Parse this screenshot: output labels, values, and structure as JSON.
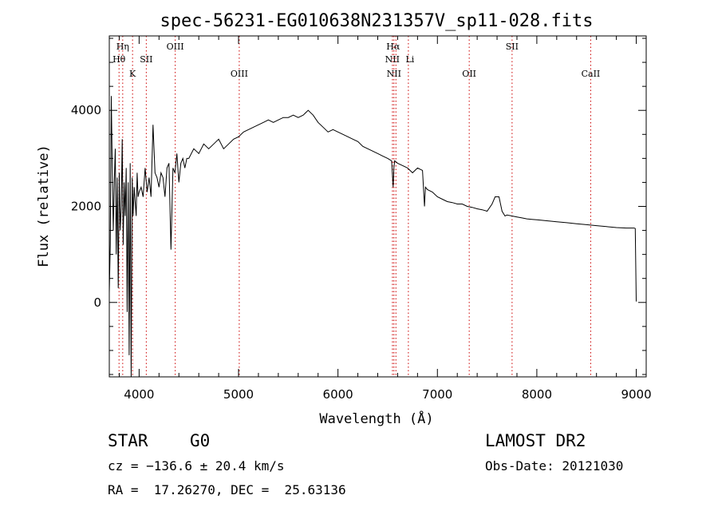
{
  "chart_data": {
    "type": "line",
    "title": "spec-56231-EG010638N231357V_sp11-028.fits",
    "xlabel": "Wavelength (Å)",
    "ylabel": "Flux (relative)",
    "xlim": [
      3700,
      9100
    ],
    "ylim": [
      -1550,
      5550
    ],
    "xticks": [
      4000,
      5000,
      6000,
      7000,
      8000,
      9000
    ],
    "yticks": [
      0,
      2000,
      4000
    ],
    "xtick_labels": [
      "4000",
      "5000",
      "6000",
      "7000",
      "8000",
      "9000"
    ],
    "ytick_labels": [
      "0",
      "2000",
      "4000"
    ],
    "grid": false,
    "series": [
      {
        "x": [
          3700,
          3710,
          3720,
          3730,
          3740,
          3750,
          3760,
          3770,
          3780,
          3790,
          3800,
          3810,
          3820,
          3830,
          3840,
          3850,
          3860,
          3870,
          3880,
          3890,
          3900,
          3910,
          3920,
          3930,
          3940,
          3950,
          3960,
          3970,
          3980,
          3990,
          4000,
          4020,
          4040,
          4060,
          4080,
          4100,
          4120,
          4140,
          4160,
          4180,
          4200,
          4220,
          4240,
          4260,
          4280,
          4300,
          4320,
          4340,
          4360,
          4380,
          4400,
          4420,
          4440,
          4460,
          4480,
          4500,
          4550,
          4600,
          4650,
          4700,
          4750,
          4800,
          4850,
          4900,
          4950,
          5000,
          5050,
          5100,
          5150,
          5200,
          5250,
          5300,
          5350,
          5400,
          5450,
          5500,
          5550,
          5600,
          5650,
          5700,
          5750,
          5800,
          5850,
          5900,
          5950,
          6000,
          6050,
          6100,
          6150,
          6200,
          6250,
          6300,
          6350,
          6400,
          6450,
          6500,
          6540,
          6555,
          6562,
          6570,
          6600,
          6650,
          6700,
          6750,
          6800,
          6850,
          6870,
          6880,
          6900,
          6950,
          7000,
          7050,
          7100,
          7150,
          7200,
          7250,
          7300,
          7350,
          7400,
          7450,
          7500,
          7550,
          7580,
          7600,
          7620,
          7650,
          7680,
          7700,
          7750,
          7800,
          7850,
          7900,
          7950,
          8000,
          8100,
          8200,
          8300,
          8400,
          8500,
          8600,
          8700,
          8800,
          8900,
          8980,
          8990,
          9000
        ],
        "y": [
          200,
          1200,
          4300,
          2800,
          1500,
          2500,
          3200,
          1000,
          2600,
          300,
          2700,
          1500,
          2000,
          3400,
          1200,
          2500,
          1800,
          2800,
          -200,
          2500,
          -1100,
          2900,
          -1550,
          2600,
          1800,
          2400,
          2100,
          1800,
          2700,
          2200,
          2300,
          2400,
          2200,
          2800,
          2300,
          2600,
          2200,
          3700,
          2700,
          2600,
          2400,
          2700,
          2600,
          2200,
          2800,
          2900,
          1100,
          2800,
          2700,
          3100,
          2500,
          2900,
          3000,
          2800,
          3000,
          3000,
          3200,
          3100,
          3300,
          3200,
          3300,
          3400,
          3200,
          3300,
          3400,
          3450,
          3550,
          3600,
          3650,
          3700,
          3750,
          3800,
          3750,
          3800,
          3850,
          3850,
          3900,
          3850,
          3900,
          4000,
          3900,
          3750,
          3650,
          3550,
          3600,
          3550,
          3500,
          3450,
          3400,
          3350,
          3250,
          3200,
          3150,
          3100,
          3050,
          3000,
          2950,
          2400,
          2800,
          2950,
          2900,
          2850,
          2800,
          2700,
          2800,
          2750,
          2000,
          2400,
          2350,
          2300,
          2200,
          2150,
          2100,
          2080,
          2050,
          2050,
          2000,
          1980,
          1950,
          1930,
          1900,
          2050,
          2200,
          2200,
          2200,
          1900,
          1800,
          1820,
          1800,
          1780,
          1760,
          1740,
          1730,
          1720,
          1700,
          1680,
          1660,
          1640,
          1620,
          1600,
          1580,
          1560,
          1550,
          1550,
          1540,
          20
        ]
      }
    ],
    "annotations": [
      {
        "label": "Hη",
        "x": 3835
      },
      {
        "label": "Hθ",
        "x": 3798
      },
      {
        "label": "K",
        "x": 3934
      },
      {
        "label": "SII",
        "x": 4072
      },
      {
        "label": "OIII",
        "x": 4363
      },
      {
        "label": "OIII",
        "x": 5007
      },
      {
        "label": "Hα",
        "x": 6563
      },
      {
        "label": "NII",
        "x": 6548
      },
      {
        "label": "NII",
        "x": 6583
      },
      {
        "label": "Li",
        "x": 6708
      },
      {
        "label": "OII",
        "x": 7320
      },
      {
        "label": "SII",
        "x": 7751
      },
      {
        "label": "CaII",
        "x": 8542
      }
    ],
    "lines_x": [
      3798,
      3835,
      3934,
      4072,
      4363,
      5007,
      6548,
      6563,
      6583,
      6708,
      7320,
      7751,
      8542
    ]
  },
  "info": {
    "class_label": "STAR",
    "subclass": "G0",
    "survey": "LAMOST DR2",
    "cz_line": "cz = −136.6 ± 20.4 km/s",
    "obs_date": "Obs-Date: 20121030",
    "coords_line": "RA =  17.26270, DEC =  25.63136"
  },
  "colors": {
    "axes": "#000000",
    "line": "#000000",
    "marker_lines": "#cc0000"
  }
}
